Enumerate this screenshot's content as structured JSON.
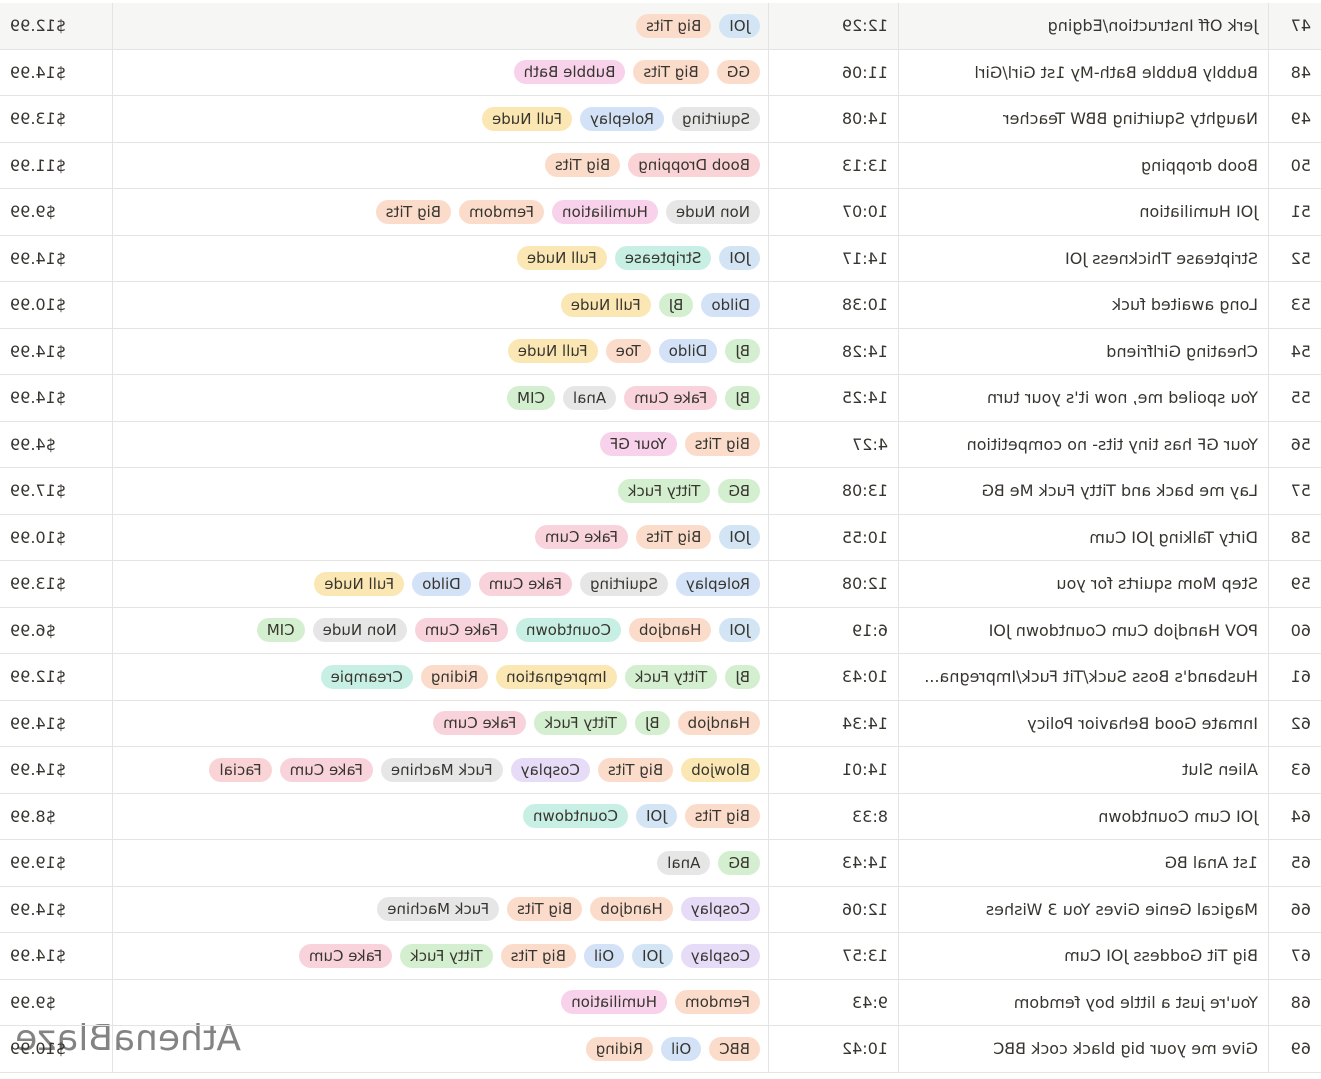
{
  "rows": [
    {
      "num": "47",
      "title": "Jerk Off Instruction/Edging",
      "duration": "12:29",
      "tags": [
        {
          "label": "JOI",
          "color": "#d3e5f5"
        },
        {
          "label": "Big Tits",
          "color": "#fbdccb"
        }
      ],
      "price": "$12.99"
    },
    {
      "num": "48",
      "title": "Bubbly Bubble Bath-My 1st Girl/Girl",
      "duration": "11:06",
      "tags": [
        {
          "label": "GG",
          "color": "#fbdccb"
        },
        {
          "label": "Big Tits",
          "color": "#fbdccb"
        },
        {
          "label": "Bubble Bath",
          "color": "#f7d2ea"
        }
      ],
      "price": "$14.99"
    },
    {
      "num": "49",
      "title": "Naughty Squirting BBW Teacher",
      "duration": "14:08",
      "tags": [
        {
          "label": "Squirting",
          "color": "#e6e6e6"
        },
        {
          "label": "Roleplay",
          "color": "#d3e2f7"
        },
        {
          "label": "Full Nude",
          "color": "#fbe7b3"
        }
      ],
      "price": "$13.99"
    },
    {
      "num": "50",
      "title": "Boob dropping",
      "duration": "13:13",
      "tags": [
        {
          "label": "Boob Dropping",
          "color": "#f9d3d6"
        },
        {
          "label": "Big Tits",
          "color": "#fbdccb"
        }
      ],
      "price": "$11.99"
    },
    {
      "num": "51",
      "title": "JOI Humiliation",
      "duration": "10:07",
      "tags": [
        {
          "label": "Non Nude",
          "color": "#e6e6e6"
        },
        {
          "label": "Humiliation",
          "color": "#f7d2ea"
        },
        {
          "label": "Femdom",
          "color": "#fbdccb"
        },
        {
          "label": "Big Tits",
          "color": "#fbdccb"
        }
      ],
      "price": "$9.99"
    },
    {
      "num": "52",
      "title": "Striptease Thickness JOI",
      "duration": "14:17",
      "tags": [
        {
          "label": "JOI",
          "color": "#d3e5f5"
        },
        {
          "label": "Striptease",
          "color": "#c8efe4"
        },
        {
          "label": "Full Nude",
          "color": "#fbe7b3"
        }
      ],
      "price": "$14.99"
    },
    {
      "num": "53",
      "title": "Long awaited fuck",
      "duration": "10:38",
      "tags": [
        {
          "label": "Dildo",
          "color": "#d3e2f7"
        },
        {
          "label": "BJ",
          "color": "#d4efcf"
        },
        {
          "label": "Full Nude",
          "color": "#fbe7b3"
        }
      ],
      "price": "$10.99"
    },
    {
      "num": "54",
      "title": "Cheating Girlfriend",
      "duration": "14:28",
      "tags": [
        {
          "label": "BJ",
          "color": "#d4efcf"
        },
        {
          "label": "Dildo",
          "color": "#d3e2f7"
        },
        {
          "label": "Toe",
          "color": "#fbdccb"
        },
        {
          "label": "Full Nude",
          "color": "#fbe7b3"
        }
      ],
      "price": "$14.99"
    },
    {
      "num": "55",
      "title": "You spoiled me, now it's your turn",
      "duration": "14:25",
      "tags": [
        {
          "label": "BJ",
          "color": "#d4efcf"
        },
        {
          "label": "Fake Cum",
          "color": "#f9d3dc"
        },
        {
          "label": "Anal",
          "color": "#e6e6e6"
        },
        {
          "label": "CIM",
          "color": "#d4efcf"
        }
      ],
      "price": "$14.99"
    },
    {
      "num": "56",
      "title": "Your GF has tiny tits- no competition",
      "duration": "4:27",
      "tags": [
        {
          "label": "Big Tits",
          "color": "#fbdccb"
        },
        {
          "label": "Your GF",
          "color": "#f7d2ea"
        }
      ],
      "price": "$4.99"
    },
    {
      "num": "57",
      "title": "Lay me back and Titty Fuck Me BG",
      "duration": "13:08",
      "tags": [
        {
          "label": "BG",
          "color": "#d4efcf"
        },
        {
          "label": "Titty Fuck",
          "color": "#d4efcf"
        }
      ],
      "price": "$17.99"
    },
    {
      "num": "58",
      "title": "Dirty Talking JOI Cum",
      "duration": "10:55",
      "tags": [
        {
          "label": "JOI",
          "color": "#d3e5f5"
        },
        {
          "label": "Big Tits",
          "color": "#fbdccb"
        },
        {
          "label": "Fake Cum",
          "color": "#f9d3dc"
        }
      ],
      "price": "$10.99"
    },
    {
      "num": "59",
      "title": "Step Mom squirts for you",
      "duration": "12:08",
      "tags": [
        {
          "label": "Roleplay",
          "color": "#d3e2f7"
        },
        {
          "label": "Squirting",
          "color": "#e6e6e6"
        },
        {
          "label": "Fake Cum",
          "color": "#f9d3dc"
        },
        {
          "label": "Dildo",
          "color": "#d3e2f7"
        },
        {
          "label": "Full Nude",
          "color": "#fbe7b3"
        }
      ],
      "price": "$13.99"
    },
    {
      "num": "60",
      "title": "POV Handjob Cum Countdown JOI",
      "duration": "6:19",
      "tags": [
        {
          "label": "JOI",
          "color": "#d3e5f5"
        },
        {
          "label": "Handjob",
          "color": "#fbdccb"
        },
        {
          "label": "Countdown",
          "color": "#c8efe4"
        },
        {
          "label": "Fake Cum",
          "color": "#f9d3dc"
        },
        {
          "label": "Non Nude",
          "color": "#e6e6e6"
        },
        {
          "label": "CIM",
          "color": "#d4efcf"
        }
      ],
      "price": "$6.99"
    },
    {
      "num": "61",
      "title": "Husband's Boss Suck/Tit Fuck/Impregna...",
      "duration": "10:43",
      "tags": [
        {
          "label": "BJ",
          "color": "#d4efcf"
        },
        {
          "label": "Titty Fuck",
          "color": "#d4efcf"
        },
        {
          "label": "Impregnation",
          "color": "#fbe7b3"
        },
        {
          "label": "Riding",
          "color": "#fbdccb"
        },
        {
          "label": "Creampie",
          "color": "#c8efe4"
        }
      ],
      "price": "$12.99"
    },
    {
      "num": "62",
      "title": "Inmate Good Behavior Policy",
      "duration": "14:34",
      "tags": [
        {
          "label": "Handjob",
          "color": "#fbdccb"
        },
        {
          "label": "BJ",
          "color": "#d4efcf"
        },
        {
          "label": "Titty Fuck",
          "color": "#d4efcf"
        },
        {
          "label": "Fake Cum",
          "color": "#f9d3dc"
        }
      ],
      "price": "$14.99"
    },
    {
      "num": "63",
      "title": "Alien Slut",
      "duration": "14:01",
      "tags": [
        {
          "label": "Blowjob",
          "color": "#fbe7b3"
        },
        {
          "label": "Big Tits",
          "color": "#fbdccb"
        },
        {
          "label": "Cosplay",
          "color": "#e6dcf7"
        },
        {
          "label": "Fuck Machine",
          "color": "#e6e6e6"
        },
        {
          "label": "Fake Cum",
          "color": "#f9d3dc"
        },
        {
          "label": "Facial",
          "color": "#f9d3d6"
        }
      ],
      "price": "$14.99"
    },
    {
      "num": "64",
      "title": "JOI Cum Countdown",
      "duration": "8:33",
      "tags": [
        {
          "label": "Big Tits",
          "color": "#fbdccb"
        },
        {
          "label": "JOI",
          "color": "#d3e5f5"
        },
        {
          "label": "Countdown",
          "color": "#c8efe4"
        }
      ],
      "price": "$8.99"
    },
    {
      "num": "65",
      "title": "1st Anal BG",
      "duration": "14:43",
      "tags": [
        {
          "label": "BG",
          "color": "#d4efcf"
        },
        {
          "label": "Anal",
          "color": "#e6e6e6"
        }
      ],
      "price": "$19.99"
    },
    {
      "num": "66",
      "title": "Magical Genie Gives You 3 Wishes",
      "duration": "12:06",
      "tags": [
        {
          "label": "Cosplay",
          "color": "#e6dcf7"
        },
        {
          "label": "Handjob",
          "color": "#fbdccb"
        },
        {
          "label": "Big Tits",
          "color": "#fbdccb"
        },
        {
          "label": "Fuck Machine",
          "color": "#e6e6e6"
        }
      ],
      "price": "$14.99"
    },
    {
      "num": "67",
      "title": "Big Tit Goddess JOI Cum",
      "duration": "13:57",
      "tags": [
        {
          "label": "Cosplay",
          "color": "#e6dcf7"
        },
        {
          "label": "JOI",
          "color": "#d3e5f5"
        },
        {
          "label": "Oil",
          "color": "#d3e2f7"
        },
        {
          "label": "Big Tits",
          "color": "#fbdccb"
        },
        {
          "label": "Titty Fuck",
          "color": "#d4efcf"
        },
        {
          "label": "Fake Cum",
          "color": "#f9d3dc"
        }
      ],
      "price": "$14.99"
    },
    {
      "num": "68",
      "title": "You're just a little boy femdom",
      "duration": "9:43",
      "tags": [
        {
          "label": "Femdom",
          "color": "#fbdccb"
        },
        {
          "label": "Humiliation",
          "color": "#f7d2ea"
        }
      ],
      "price": "$9.99"
    },
    {
      "num": "69",
      "title": "Give me your big black cock BBC",
      "duration": "10:42",
      "tags": [
        {
          "label": "BBC",
          "color": "#fbdccb"
        },
        {
          "label": "Oil",
          "color": "#d3e2f7"
        },
        {
          "label": "Riding",
          "color": "#fbdccb"
        }
      ],
      "price": "$10.99"
    }
  ],
  "watermark": "AthenaBlaze"
}
